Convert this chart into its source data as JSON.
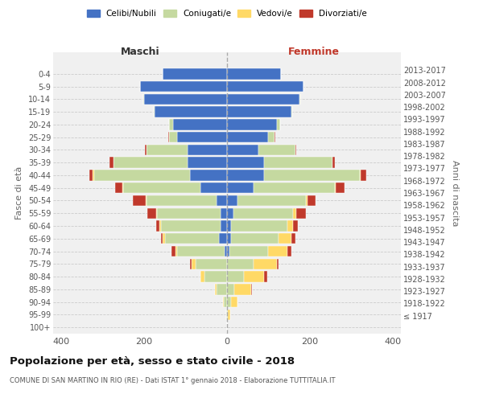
{
  "age_groups": [
    "100+",
    "95-99",
    "90-94",
    "85-89",
    "80-84",
    "75-79",
    "70-74",
    "65-69",
    "60-64",
    "55-59",
    "50-54",
    "45-49",
    "40-44",
    "35-39",
    "30-34",
    "25-29",
    "20-24",
    "15-19",
    "10-14",
    "5-9",
    "0-4"
  ],
  "birth_years": [
    "≤ 1917",
    "1918-1922",
    "1923-1927",
    "1928-1932",
    "1933-1937",
    "1938-1942",
    "1943-1947",
    "1948-1952",
    "1953-1957",
    "1958-1962",
    "1963-1967",
    "1968-1972",
    "1973-1977",
    "1978-1982",
    "1983-1987",
    "1988-1992",
    "1993-1997",
    "1998-2002",
    "2003-2007",
    "2008-2012",
    "2013-2017"
  ],
  "males": {
    "celibi": [
      0,
      0,
      0,
      0,
      0,
      0,
      5,
      20,
      15,
      15,
      25,
      65,
      90,
      95,
      95,
      120,
      130,
      175,
      200,
      210,
      155
    ],
    "coniugati": [
      0,
      2,
      8,
      25,
      55,
      75,
      115,
      130,
      145,
      155,
      170,
      185,
      230,
      180,
      100,
      20,
      10,
      2,
      2,
      0,
      0
    ],
    "vedovi": [
      0,
      0,
      2,
      5,
      10,
      10,
      5,
      5,
      3,
      2,
      2,
      2,
      5,
      0,
      0,
      0,
      0,
      0,
      0,
      0,
      0
    ],
    "divorziati": [
      0,
      0,
      0,
      0,
      0,
      5,
      10,
      5,
      8,
      20,
      30,
      18,
      8,
      8,
      3,
      2,
      0,
      0,
      0,
      0,
      0
    ]
  },
  "females": {
    "nubili": [
      0,
      0,
      0,
      0,
      0,
      0,
      5,
      10,
      10,
      15,
      25,
      65,
      90,
      90,
      75,
      100,
      120,
      155,
      175,
      185,
      130
    ],
    "coniugate": [
      0,
      2,
      10,
      18,
      40,
      65,
      95,
      115,
      135,
      145,
      165,
      195,
      230,
      165,
      90,
      15,
      8,
      2,
      2,
      0,
      0
    ],
    "vedove": [
      0,
      5,
      15,
      40,
      50,
      55,
      45,
      30,
      15,
      8,
      5,
      3,
      2,
      0,
      0,
      0,
      0,
      0,
      0,
      0,
      0
    ],
    "divorziate": [
      0,
      0,
      0,
      3,
      8,
      5,
      10,
      10,
      12,
      22,
      18,
      20,
      15,
      5,
      3,
      2,
      0,
      0,
      0,
      0,
      0
    ]
  },
  "colors": {
    "celibi": "#4472c4",
    "coniugati": "#c5d9a0",
    "vedovi": "#ffd966",
    "divorziati": "#c0392b"
  },
  "xlim": 420,
  "title": "Popolazione per età, sesso e stato civile - 2018",
  "subtitle": "COMUNE DI SAN MARTINO IN RIO (RE) - Dati ISTAT 1° gennaio 2018 - Elaborazione TUTTITALIA.IT",
  "ylabel": "Fasce di età",
  "ylabel_right": "Anni di nascita",
  "xlabel_left": "Maschi",
  "xlabel_right": "Femmine",
  "bg_color": "#f0f0f0",
  "grid_color": "#cccccc"
}
